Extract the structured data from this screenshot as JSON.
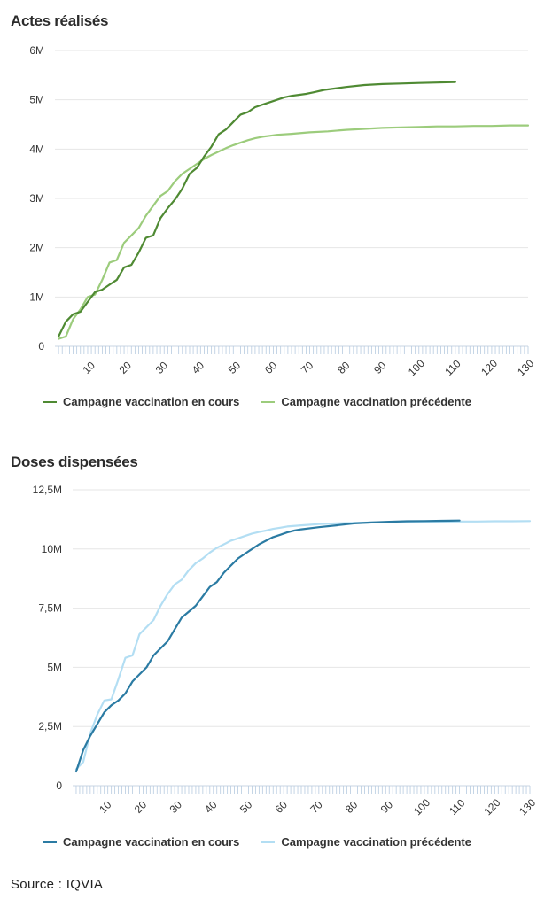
{
  "source_text": "Source : IQVIA",
  "chart_data": [
    {
      "type": "line",
      "title": "Actes réalisés",
      "xlabel": "",
      "ylabel": "",
      "xlim": [
        0,
        130
      ],
      "ylim": [
        0,
        6
      ],
      "y_ticks": [
        "0",
        "1M",
        "2M",
        "3M",
        "4M",
        "5M",
        "6M"
      ],
      "x_ticks": [
        "10",
        "20",
        "30",
        "40",
        "50",
        "60",
        "70",
        "80",
        "90",
        "100",
        "110",
        "120",
        "130"
      ],
      "grid": true,
      "legend_position": "bottom",
      "series": [
        {
          "name": "Campagne vaccination en cours",
          "color": "#4f8a33",
          "points": [
            [
              1,
              0.2
            ],
            [
              3,
              0.5
            ],
            [
              5,
              0.65
            ],
            [
              7,
              0.7
            ],
            [
              9,
              0.9
            ],
            [
              11,
              1.1
            ],
            [
              13,
              1.15
            ],
            [
              15,
              1.25
            ],
            [
              17,
              1.35
            ],
            [
              19,
              1.6
            ],
            [
              21,
              1.65
            ],
            [
              23,
              1.9
            ],
            [
              25,
              2.2
            ],
            [
              27,
              2.25
            ],
            [
              29,
              2.6
            ],
            [
              31,
              2.8
            ],
            [
              33,
              2.98
            ],
            [
              35,
              3.2
            ],
            [
              37,
              3.5
            ],
            [
              39,
              3.62
            ],
            [
              41,
              3.85
            ],
            [
              43,
              4.05
            ],
            [
              45,
              4.3
            ],
            [
              47,
              4.4
            ],
            [
              49,
              4.55
            ],
            [
              51,
              4.7
            ],
            [
              53,
              4.75
            ],
            [
              55,
              4.85
            ],
            [
              57,
              4.9
            ],
            [
              59,
              4.95
            ],
            [
              61,
              5.0
            ],
            [
              63,
              5.05
            ],
            [
              65,
              5.08
            ],
            [
              67,
              5.1
            ],
            [
              69,
              5.12
            ],
            [
              71,
              5.15
            ],
            [
              74,
              5.2
            ],
            [
              77,
              5.23
            ],
            [
              80,
              5.26
            ],
            [
              85,
              5.3
            ],
            [
              90,
              5.32
            ],
            [
              95,
              5.33
            ],
            [
              100,
              5.34
            ],
            [
              105,
              5.35
            ],
            [
              110,
              5.36
            ]
          ]
        },
        {
          "name": "Campagne vaccination précédente",
          "color": "#9ccc7c",
          "points": [
            [
              1,
              0.15
            ],
            [
              3,
              0.2
            ],
            [
              5,
              0.55
            ],
            [
              7,
              0.75
            ],
            [
              9,
              1.0
            ],
            [
              11,
              1.05
            ],
            [
              13,
              1.35
            ],
            [
              15,
              1.7
            ],
            [
              17,
              1.75
            ],
            [
              19,
              2.1
            ],
            [
              21,
              2.25
            ],
            [
              23,
              2.4
            ],
            [
              25,
              2.65
            ],
            [
              27,
              2.85
            ],
            [
              29,
              3.05
            ],
            [
              31,
              3.15
            ],
            [
              33,
              3.35
            ],
            [
              35,
              3.5
            ],
            [
              37,
              3.6
            ],
            [
              39,
              3.7
            ],
            [
              41,
              3.8
            ],
            [
              43,
              3.88
            ],
            [
              45,
              3.95
            ],
            [
              47,
              4.02
            ],
            [
              49,
              4.08
            ],
            [
              51,
              4.13
            ],
            [
              53,
              4.18
            ],
            [
              55,
              4.22
            ],
            [
              57,
              4.25
            ],
            [
              59,
              4.27
            ],
            [
              61,
              4.29
            ],
            [
              65,
              4.31
            ],
            [
              70,
              4.34
            ],
            [
              75,
              4.36
            ],
            [
              80,
              4.39
            ],
            [
              85,
              4.41
            ],
            [
              90,
              4.43
            ],
            [
              95,
              4.44
            ],
            [
              100,
              4.45
            ],
            [
              105,
              4.46
            ],
            [
              110,
              4.46
            ],
            [
              115,
              4.47
            ],
            [
              120,
              4.47
            ],
            [
              125,
              4.48
            ],
            [
              130,
              4.48
            ]
          ]
        }
      ]
    },
    {
      "type": "line",
      "title": "Doses dispensées",
      "xlabel": "",
      "ylabel": "",
      "xlim": [
        0,
        130
      ],
      "ylim": [
        0,
        12.5
      ],
      "y_ticks": [
        "0",
        "2,5M",
        "5M",
        "7,5M",
        "10M",
        "12,5M"
      ],
      "x_ticks": [
        "10",
        "20",
        "30",
        "40",
        "50",
        "60",
        "70",
        "80",
        "90",
        "100",
        "110",
        "120",
        "130"
      ],
      "grid": true,
      "legend_position": "bottom",
      "series": [
        {
          "name": "Campagne vaccination en cours",
          "color": "#2b7ba3",
          "points": [
            [
              1,
              0.6
            ],
            [
              3,
              1.5
            ],
            [
              5,
              2.1
            ],
            [
              7,
              2.6
            ],
            [
              9,
              3.1
            ],
            [
              11,
              3.4
            ],
            [
              13,
              3.6
            ],
            [
              15,
              3.9
            ],
            [
              17,
              4.4
            ],
            [
              19,
              4.7
            ],
            [
              21,
              5.0
            ],
            [
              23,
              5.5
            ],
            [
              25,
              5.8
            ],
            [
              27,
              6.1
            ],
            [
              29,
              6.6
            ],
            [
              31,
              7.1
            ],
            [
              33,
              7.35
            ],
            [
              35,
              7.6
            ],
            [
              37,
              8.0
            ],
            [
              39,
              8.4
            ],
            [
              41,
              8.6
            ],
            [
              43,
              9.0
            ],
            [
              45,
              9.3
            ],
            [
              47,
              9.6
            ],
            [
              49,
              9.8
            ],
            [
              51,
              10.0
            ],
            [
              53,
              10.2
            ],
            [
              55,
              10.35
            ],
            [
              57,
              10.5
            ],
            [
              59,
              10.6
            ],
            [
              61,
              10.7
            ],
            [
              63,
              10.78
            ],
            [
              65,
              10.83
            ],
            [
              70,
              10.92
            ],
            [
              75,
              11.0
            ],
            [
              80,
              11.08
            ],
            [
              85,
              11.12
            ],
            [
              90,
              11.15
            ],
            [
              95,
              11.17
            ],
            [
              100,
              11.18
            ],
            [
              105,
              11.19
            ],
            [
              110,
              11.2
            ]
          ]
        },
        {
          "name": "Campagne vaccination précédente",
          "color": "#b3def3",
          "points": [
            [
              1,
              0.7
            ],
            [
              3,
              1.0
            ],
            [
              5,
              2.2
            ],
            [
              7,
              3.0
            ],
            [
              9,
              3.6
            ],
            [
              11,
              3.65
            ],
            [
              13,
              4.5
            ],
            [
              15,
              5.4
            ],
            [
              17,
              5.5
            ],
            [
              19,
              6.4
            ],
            [
              21,
              6.7
            ],
            [
              23,
              7.0
            ],
            [
              25,
              7.6
            ],
            [
              27,
              8.1
            ],
            [
              29,
              8.5
            ],
            [
              31,
              8.7
            ],
            [
              33,
              9.1
            ],
            [
              35,
              9.4
            ],
            [
              37,
              9.6
            ],
            [
              39,
              9.85
            ],
            [
              41,
              10.05
            ],
            [
              43,
              10.2
            ],
            [
              45,
              10.35
            ],
            [
              47,
              10.45
            ],
            [
              49,
              10.55
            ],
            [
              51,
              10.65
            ],
            [
              53,
              10.72
            ],
            [
              55,
              10.78
            ],
            [
              57,
              10.85
            ],
            [
              59,
              10.9
            ],
            [
              61,
              10.95
            ],
            [
              65,
              11.0
            ],
            [
              70,
              11.05
            ],
            [
              75,
              11.08
            ],
            [
              80,
              11.1
            ],
            [
              85,
              11.12
            ],
            [
              90,
              11.13
            ],
            [
              95,
              11.14
            ],
            [
              100,
              11.15
            ],
            [
              105,
              11.15
            ],
            [
              110,
              11.16
            ],
            [
              115,
              11.16
            ],
            [
              120,
              11.17
            ],
            [
              125,
              11.17
            ],
            [
              130,
              11.18
            ]
          ]
        }
      ]
    }
  ]
}
